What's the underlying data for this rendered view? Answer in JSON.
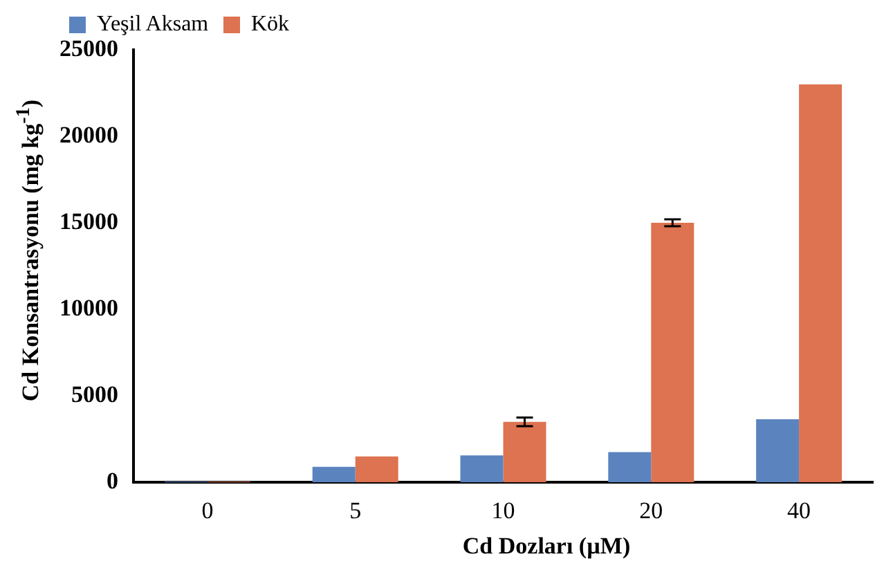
{
  "chart_data": {
    "type": "bar",
    "xlabel": "Cd Dozları (µM)",
    "ylabel": "Cd Konsantrasyonu (mg kg$^{-1}$)",
    "categories": [
      "0",
      "5",
      "10",
      "20",
      "40"
    ],
    "series": [
      {
        "name": "Yeşil Aksam",
        "color": "#5b84bf",
        "values": [
          50,
          900,
          1560,
          1750,
          3650
        ]
      },
      {
        "name": "Kök",
        "color": "#dd7350",
        "values": [
          50,
          1500,
          3500,
          15000,
          23000
        ],
        "errors": [
          null,
          null,
          250,
          200,
          null
        ]
      }
    ],
    "ylim": [
      0,
      25000
    ],
    "yticks": [
      0,
      5000,
      10000,
      15000,
      20000,
      25000
    ],
    "grid": false,
    "legend": "top"
  }
}
